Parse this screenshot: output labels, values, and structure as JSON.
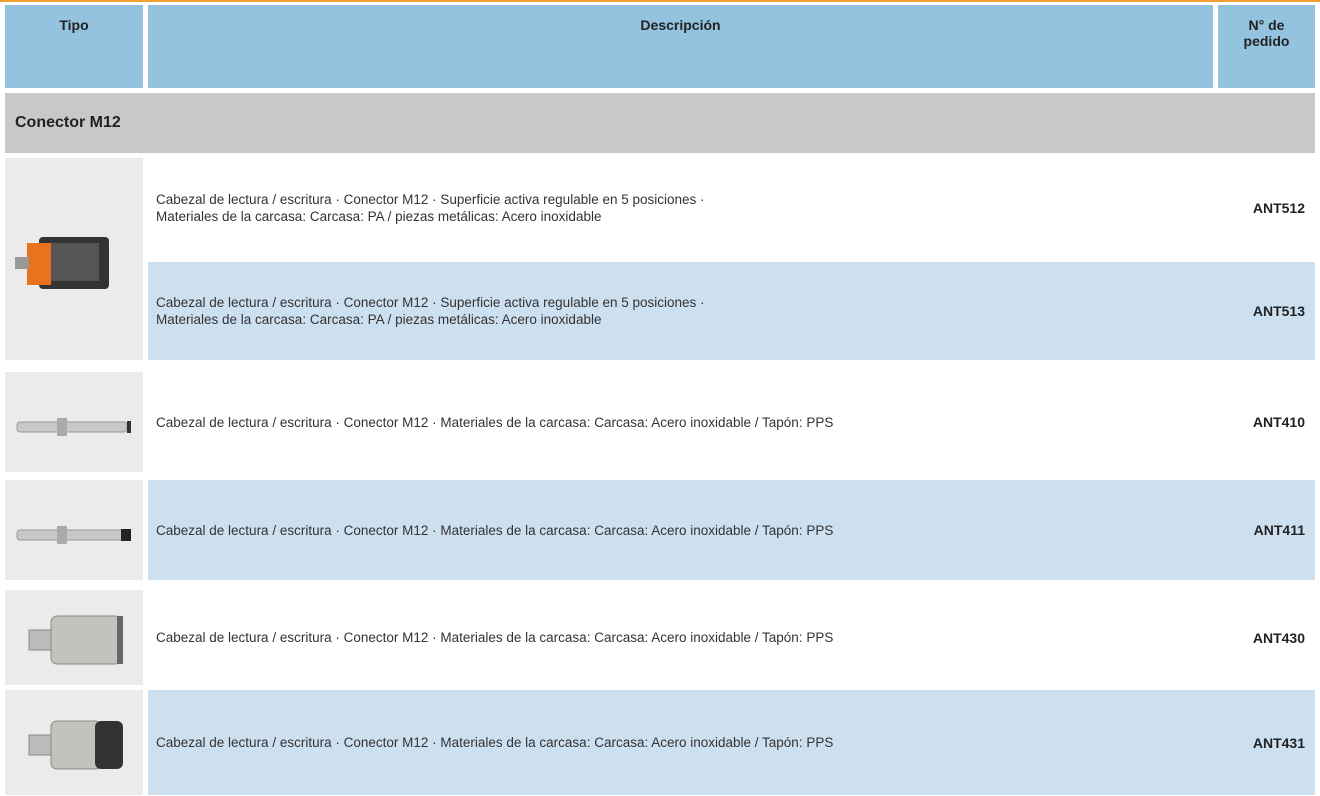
{
  "header": {
    "columns": [
      "Tipo",
      "Descripción",
      "N° de pedido"
    ]
  },
  "section": {
    "title": "Conector M12"
  },
  "rows": [
    {
      "description": [
        "Cabezal de lectura / escritura · Conector M12 · Superficie activa regulable en 5 posiciones ·",
        "Materiales de la carcasa: Carcasa: PA / piezas metálicas: Acero inoxidable"
      ],
      "order": "ANT512"
    },
    {
      "description": [
        "Cabezal de lectura / escritura · Conector M12 · Superficie activa regulable en 5 posiciones ·",
        "Materiales de la carcasa: Carcasa: PA / piezas metálicas: Acero inoxidable"
      ],
      "order": "ANT513"
    },
    {
      "description": [
        "Cabezal de lectura / escritura · Conector M12 · Materiales de la carcasa: Carcasa: Acero inoxidable / Tapón: PPS"
      ],
      "order": "ANT410"
    },
    {
      "description": [
        "Cabezal de lectura / escritura · Conector M12 · Materiales de la carcasa: Carcasa: Acero inoxidable / Tapón: PPS"
      ],
      "order": "ANT411"
    },
    {
      "description": [
        "Cabezal de lectura / escritura · Conector M12 · Materiales de la carcasa: Carcasa: Acero inoxidable / Tapón: PPS"
      ],
      "order": "ANT430"
    },
    {
      "description": [
        "Cabezal de lectura / escritura · Conector M12 · Materiales de la carcasa: Carcasa: Acero inoxidable / Tapón: PPS"
      ],
      "order": "ANT431"
    }
  ]
}
